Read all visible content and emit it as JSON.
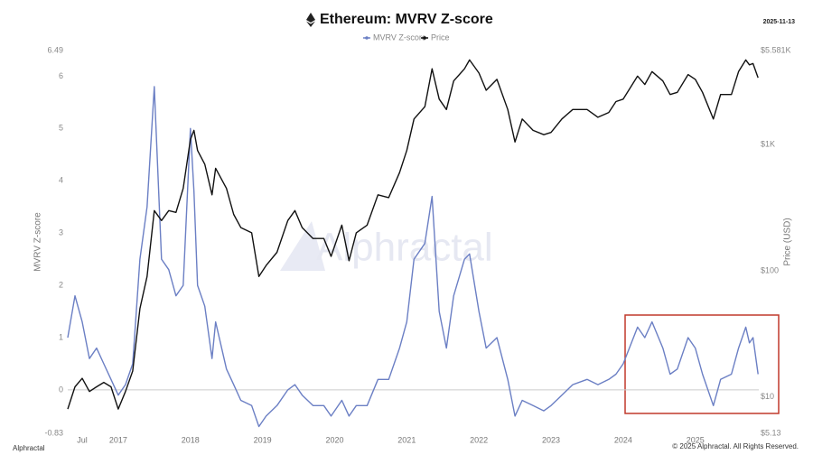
{
  "chart_data": {
    "type": "line",
    "title": "Ethereum: MVRV Z-score",
    "date": "2025-11-13",
    "y_label": "MVRV Z-score",
    "y2_label": "Price (USD)",
    "watermark": "Alphractal",
    "source": "Alphractal",
    "copyright": "© 2025 Alphractal. All Rights Reserved.",
    "x": [
      2016.3,
      2016.4,
      2016.5,
      2016.6,
      2016.7,
      2016.8,
      2016.9,
      2017.0,
      2017.1,
      2017.2,
      2017.3,
      2017.4,
      2017.5,
      2017.6,
      2017.7,
      2017.8,
      2017.9,
      2018.0,
      2018.05,
      2018.1,
      2018.2,
      2018.3,
      2018.35,
      2018.5,
      2018.6,
      2018.7,
      2018.85,
      2018.95,
      2019.05,
      2019.2,
      2019.35,
      2019.45,
      2019.55,
      2019.7,
      2019.85,
      2019.95,
      2020.1,
      2020.2,
      2020.3,
      2020.45,
      2020.6,
      2020.75,
      2020.9,
      2021.0,
      2021.1,
      2021.25,
      2021.35,
      2021.45,
      2021.55,
      2021.65,
      2021.8,
      2021.87,
      2022.0,
      2022.1,
      2022.25,
      2022.4,
      2022.5,
      2022.6,
      2022.75,
      2022.9,
      2023.0,
      2023.15,
      2023.3,
      2023.5,
      2023.65,
      2023.8,
      2023.9,
      2024.0,
      2024.2,
      2024.3,
      2024.4,
      2024.55,
      2024.65,
      2024.75,
      2024.9,
      2025.0,
      2025.1,
      2025.25,
      2025.35,
      2025.5,
      2025.6,
      2025.7,
      2025.75,
      2025.8,
      2025.87
    ],
    "series": [
      {
        "name": "MVRV Z-score",
        "color": "#6b7fc4",
        "axis": "y",
        "values": [
          1.0,
          1.8,
          1.3,
          0.6,
          0.8,
          0.5,
          0.2,
          -0.1,
          0.1,
          0.5,
          2.5,
          3.5,
          5.8,
          2.5,
          2.3,
          1.8,
          2.0,
          5.0,
          3.8,
          2.0,
          1.6,
          0.6,
          1.3,
          0.4,
          0.1,
          -0.2,
          -0.3,
          -0.7,
          -0.5,
          -0.3,
          0.0,
          0.1,
          -0.1,
          -0.3,
          -0.3,
          -0.5,
          -0.2,
          -0.5,
          -0.3,
          -0.3,
          0.2,
          0.2,
          0.8,
          1.3,
          2.5,
          2.8,
          3.7,
          1.5,
          0.8,
          1.8,
          2.5,
          2.6,
          1.5,
          0.8,
          1.0,
          0.2,
          -0.5,
          -0.2,
          -0.3,
          -0.4,
          -0.3,
          -0.1,
          0.1,
          0.2,
          0.1,
          0.2,
          0.3,
          0.5,
          1.2,
          1.0,
          1.3,
          0.8,
          0.3,
          0.4,
          1.0,
          0.8,
          0.3,
          -0.3,
          0.2,
          0.3,
          0.8,
          1.2,
          0.9,
          1.0,
          0.3
        ]
      },
      {
        "name": "Price",
        "color": "#111111",
        "axis": "y2",
        "values": [
          8,
          12,
          14,
          11,
          12,
          13,
          12,
          8,
          11,
          16,
          50,
          90,
          300,
          250,
          300,
          290,
          450,
          1100,
          1300,
          900,
          700,
          400,
          650,
          450,
          280,
          220,
          200,
          90,
          110,
          140,
          250,
          300,
          220,
          180,
          180,
          130,
          230,
          120,
          200,
          230,
          400,
          380,
          600,
          900,
          1600,
          2000,
          4000,
          2300,
          1900,
          3200,
          4000,
          4700,
          3700,
          2700,
          3300,
          1900,
          1050,
          1600,
          1300,
          1200,
          1250,
          1600,
          1900,
          1900,
          1650,
          1800,
          2200,
          2300,
          3500,
          3000,
          3800,
          3200,
          2500,
          2600,
          3600,
          3300,
          2600,
          1600,
          2500,
          2500,
          3800,
          4700,
          4300,
          4400,
          3400
        ]
      }
    ],
    "xlim": [
      2016.3,
      2025.88
    ],
    "xticks": [
      {
        "value": 2016.5,
        "label": "Jul"
      },
      2017,
      2018,
      2019,
      2020,
      2021,
      2022,
      2023,
      2024,
      2025
    ],
    "ylim": [
      -0.83,
      6.49
    ],
    "yticks": [
      -0.83,
      0,
      1,
      2,
      3,
      4,
      5,
      6,
      6.49
    ],
    "y2lim": [
      5.13,
      5581
    ],
    "y2ticks": [
      {
        "value": 5.13,
        "label": "$5.13"
      },
      {
        "value": 10,
        "label": "$10"
      },
      {
        "value": 100,
        "label": "$100"
      },
      {
        "value": 1000,
        "label": "$1K"
      },
      {
        "value": 5581,
        "label": "$5.581K"
      }
    ],
    "y2_log": true,
    "zero_line": 0
  }
}
